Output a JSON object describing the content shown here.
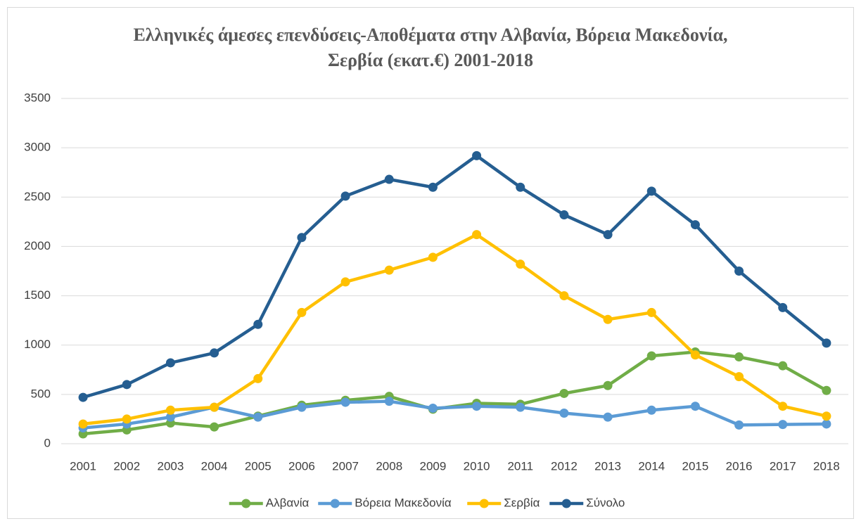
{
  "chart_data": {
    "type": "line",
    "title": "Ελληνικές άμεσες επενδύσεις-Αποθέματα στην Αλβανία, Βόρεια Μακεδονία, Σερβία (εκατ.€) 2001-2018",
    "categories": [
      "2001",
      "2002",
      "2003",
      "2004",
      "2005",
      "2006",
      "2007",
      "2008",
      "2009",
      "2010",
      "2011",
      "2012",
      "2013",
      "2014",
      "2015",
      "2016",
      "2017",
      "2018"
    ],
    "series": [
      {
        "name": "Αλβανία",
        "color": "#70ad47",
        "values": [
          100,
          140,
          210,
          170,
          280,
          390,
          440,
          480,
          350,
          410,
          400,
          510,
          590,
          890,
          930,
          880,
          790,
          540
        ]
      },
      {
        "name": "Βόρεια Μακεδονία",
        "color": "#5b9bd5",
        "values": [
          160,
          200,
          270,
          370,
          270,
          370,
          420,
          430,
          360,
          380,
          370,
          310,
          270,
          340,
          380,
          190,
          195,
          200
        ]
      },
      {
        "name": "Σερβία",
        "color": "#ffc000",
        "values": [
          200,
          250,
          340,
          370,
          660,
          1330,
          1640,
          1760,
          1890,
          2120,
          1820,
          1500,
          1260,
          1330,
          900,
          680,
          380,
          280
        ]
      },
      {
        "name": "Σύνολο",
        "color": "#255e91",
        "values": [
          470,
          600,
          820,
          920,
          1210,
          2090,
          2510,
          2680,
          2600,
          2920,
          2600,
          2320,
          2120,
          2560,
          2220,
          1750,
          1380,
          1020
        ]
      }
    ],
    "ylim": [
      0,
      3500
    ],
    "yticks": [
      0,
      500,
      1000,
      1500,
      2000,
      2500,
      3000,
      3500
    ],
    "grid": true,
    "legend": "bottom"
  }
}
